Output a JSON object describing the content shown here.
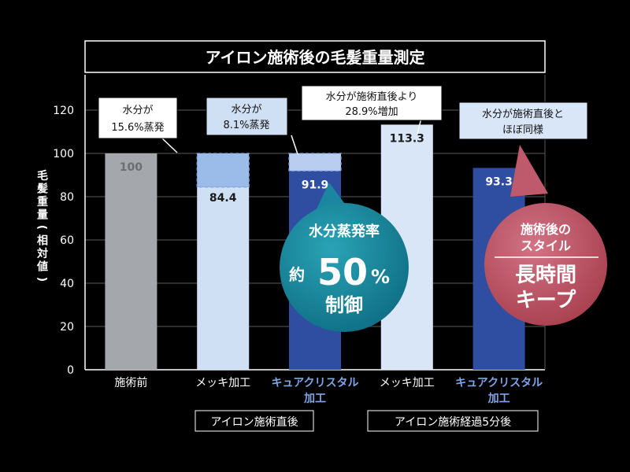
{
  "chart_data": {
    "type": "bar",
    "title": "アイロン施術後の毛髪重量測定",
    "ylabel": "毛髪重量(相対値)",
    "ylim": [
      0,
      120
    ],
    "yticks": [
      0,
      20,
      40,
      60,
      80,
      100,
      120
    ],
    "grid": true,
    "bars": [
      {
        "label": "施術前",
        "value": 100,
        "value_label": "100",
        "color": "#a4a8ad",
        "label_color": "#ffffff",
        "value_text_color": "#6b6f74"
      },
      {
        "label": "メッキ加工",
        "value": 84.4,
        "value_label": "84.4",
        "color": "#cfdff4",
        "label_color": "#ffffff",
        "value_text_color": "#1a1a1a",
        "lost_from": 100,
        "lost_color": "#9bbce8"
      },
      {
        "label": "キュアクリスタル加工",
        "label_lines": [
          "キュアクリスタル",
          "加工"
        ],
        "value": 91.9,
        "value_label": "91.9",
        "color": "#2f4ea1",
        "label_color": "#7fa5e6",
        "value_text_color": "#ffffff",
        "lost_from": 100,
        "lost_color": "#b8cdef"
      },
      {
        "label": "メッキ加工",
        "value": 113.3,
        "value_label": "113.3",
        "color": "#d9e6f7",
        "label_color": "#ffffff",
        "value_text_color": "#1a1a1a"
      },
      {
        "label": "キュアクリスタル加工",
        "label_lines": [
          "キュアクリスタル",
          "加工"
        ],
        "value": 93.3,
        "value_label": "93.3",
        "color": "#2f4ea1",
        "label_color": "#7fa5e6",
        "value_text_color": "#ffffff"
      }
    ],
    "groups": [
      {
        "label": "アイロン施術直後"
      },
      {
        "label": "アイロン施術経過5分後"
      }
    ],
    "callouts": [
      {
        "lines": [
          "水分が",
          "15.6%蒸発"
        ]
      },
      {
        "lines": [
          "水分が",
          "8.1%蒸発"
        ]
      },
      {
        "lines": [
          "水分が施術直後より",
          "28.9%増加"
        ]
      },
      {
        "lines": [
          "水分が施術直後と",
          "ほぼ同様"
        ]
      }
    ],
    "badges": [
      {
        "lines": [
          "水分蒸発率",
          "約",
          "50",
          "%",
          "制御"
        ],
        "color": "#1f8fa3"
      },
      {
        "lines": [
          "施術後の",
          "スタイル",
          "長時間",
          "キープ"
        ],
        "color": "#c0596b"
      }
    ]
  }
}
